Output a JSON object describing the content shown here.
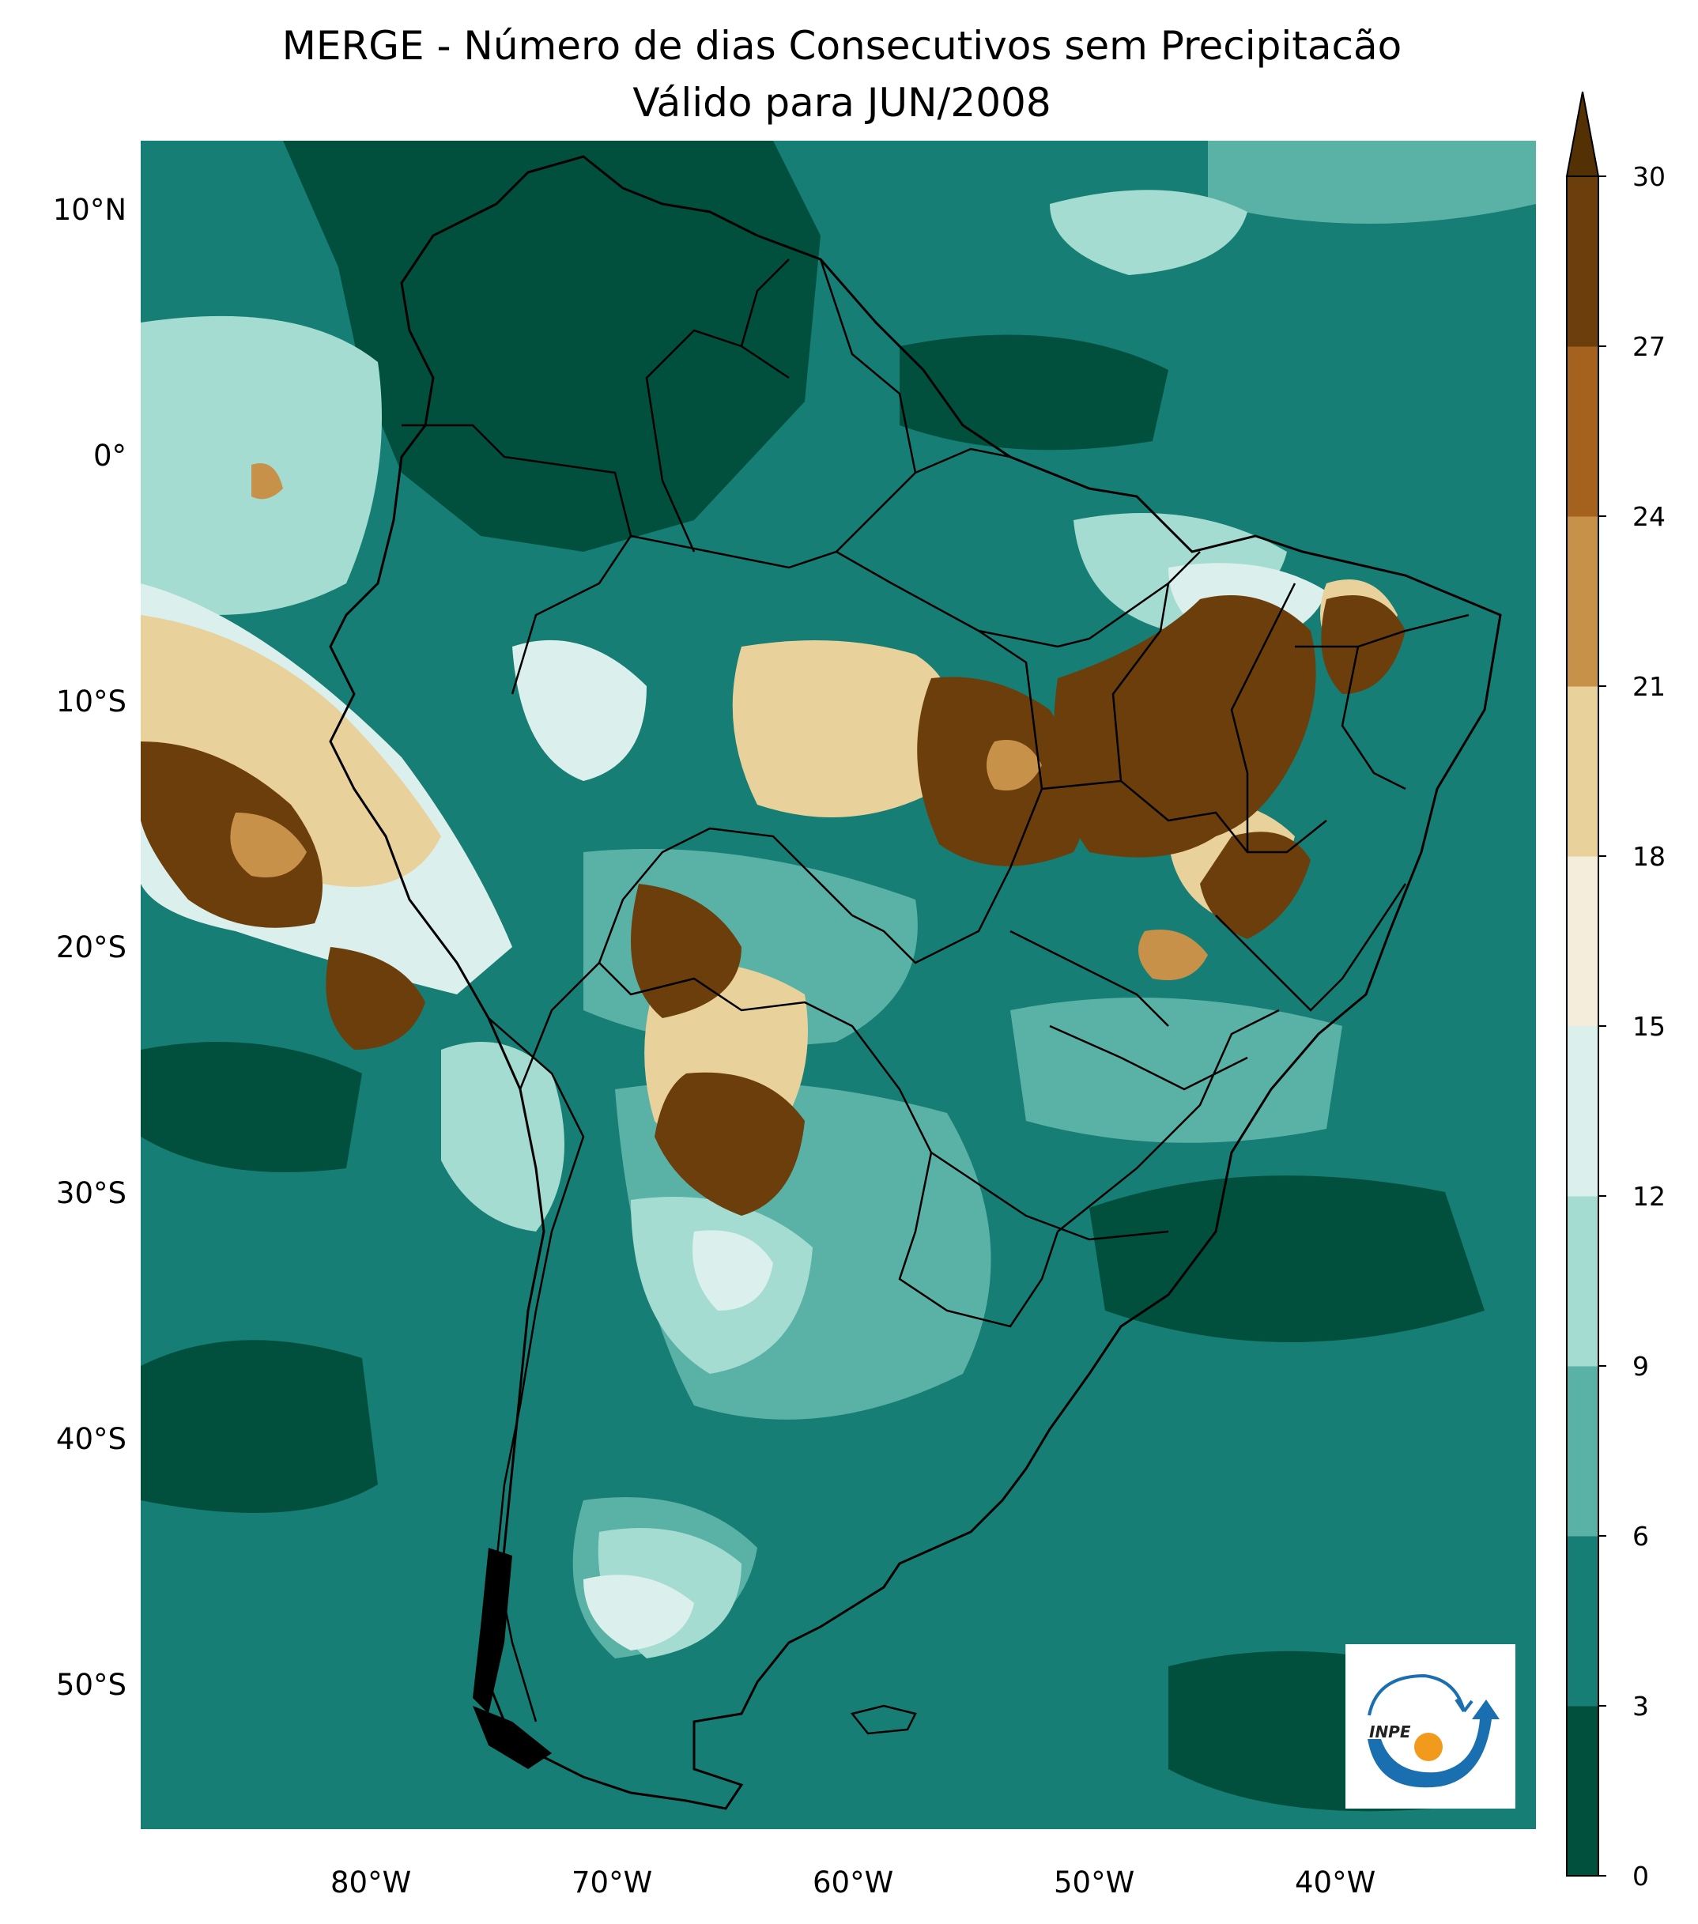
{
  "title": {
    "line1": "MERGE - Número de dias Consecutivos sem Precipitacão",
    "line2": "Válido para JUN/2008"
  },
  "map": {
    "region": "South America",
    "projection": "PlateCarree",
    "lon_range_deg": [
      -90,
      -32
    ],
    "lat_range_deg": [
      -57,
      13
    ],
    "lat_ticks": [
      "10°N",
      "0°",
      "10°S",
      "20°S",
      "30°S",
      "40°S",
      "50°S"
    ],
    "lon_ticks": [
      "80°W",
      "70°W",
      "60°W",
      "50°W",
      "40°W"
    ],
    "overlays": [
      "country-borders",
      "brazil-state-borders",
      "coastlines"
    ]
  },
  "colorbar": {
    "levels": [
      "0",
      "3",
      "6",
      "9",
      "12",
      "15",
      "18",
      "21",
      "24",
      "27",
      "30"
    ],
    "colors": [
      "#01503e",
      "#167e74",
      "#5ab2a7",
      "#a4dcd1",
      "#dbefec",
      "#f5eddc",
      "#e9d19b",
      "#c8914a",
      "#a5611e",
      "#6c3e0b"
    ],
    "extend": "max",
    "extend_color": "#543005"
  },
  "logo": {
    "text": "INPE"
  }
}
